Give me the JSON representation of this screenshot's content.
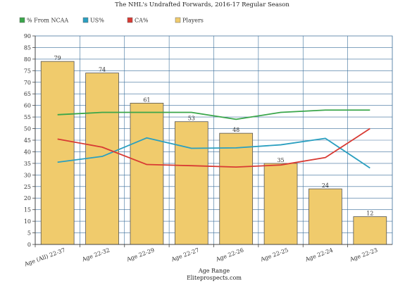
{
  "chart_data": {
    "type": "bar",
    "title": "The NHL's Undrafted Forwards, 2016-17 Regular Season",
    "xlabel": "Age Range",
    "source": "Eliteprospects.com",
    "ylabel": "",
    "ylim": [
      0,
      90
    ],
    "yticks": [
      0,
      5,
      10,
      15,
      20,
      25,
      30,
      35,
      40,
      45,
      50,
      55,
      60,
      65,
      70,
      75,
      80,
      85,
      90
    ],
    "grid": true,
    "legend_position": "top-left",
    "categories": [
      "Age (All) 22-37",
      "Age 22-32",
      "Age 22-29",
      "Age 22-27",
      "Age 22-26",
      "Age 22-25",
      "Age 22-24",
      "Age 22-23"
    ],
    "bars": {
      "name": "Players",
      "color": "#f0cb6c",
      "values": [
        79,
        74,
        61,
        53,
        48,
        35,
        24,
        12
      ],
      "labels": [
        "79",
        "74",
        "61",
        "53",
        "48",
        "35",
        "24",
        "12"
      ]
    },
    "series": [
      {
        "name": "% From NCAA",
        "color": "#3aa64a",
        "values": [
          56,
          57,
          57,
          57,
          54,
          57,
          58,
          58
        ]
      },
      {
        "name": "US%",
        "color": "#2a9fc0",
        "values": [
          35.5,
          38,
          46,
          41.5,
          41.7,
          43,
          45.8,
          33
        ]
      },
      {
        "name": "CA%",
        "color": "#d83a33",
        "values": [
          45.5,
          42,
          34.5,
          34,
          33.4,
          34.3,
          37.5,
          50
        ]
      }
    ]
  }
}
